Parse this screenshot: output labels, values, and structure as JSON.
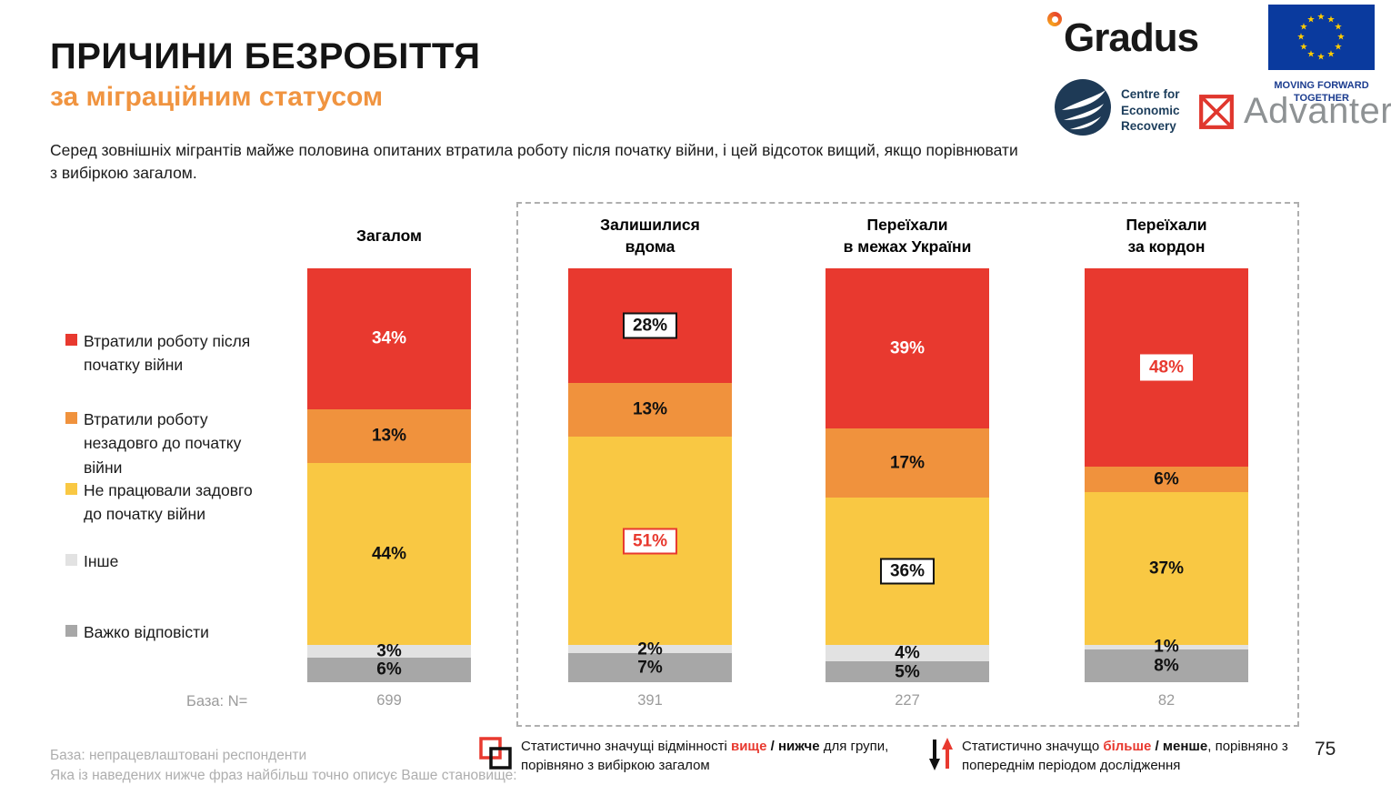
{
  "header": {
    "title": "ПРИЧИНИ БЕЗРОБІТТЯ",
    "subtitle": "за міграційним статусом",
    "intro": "Серед зовнішніх мігрантів майже половина опитаних втратила роботу після початку війни, і цей відсоток вищий, якщо порівнювати\nз вибіркою загалом."
  },
  "logos": {
    "gradus_text": "Gradus",
    "eu_caption": "MOVING FORWARD\nTOGETHER",
    "cer_text": "Centre for\nEconomic\nRecovery",
    "advanter_text": "Advanter"
  },
  "chart_data": {
    "type": "bar",
    "stacked": true,
    "value_unit": "%",
    "categories": [
      "Загалом",
      "Залишилися вдома",
      "Переїхали в межах України",
      "Переїхали за кордон"
    ],
    "category_display": [
      "Загалом",
      "Залишилися\nвдома",
      "Переїхали\nв межах України",
      "Переїхали\nза кордон"
    ],
    "series": [
      {
        "name": "Втратили роботу після початку війни",
        "color": "#E8392F",
        "values": [
          34,
          28,
          39,
          48
        ]
      },
      {
        "name": "Втратили роботу незадовго до початку війни",
        "color": "#F0923D",
        "values": [
          13,
          13,
          17,
          6
        ]
      },
      {
        "name": "Не працювали задовго до початку війни",
        "color": "#F9C843",
        "values": [
          44,
          51,
          36,
          37
        ]
      },
      {
        "name": "Інше",
        "color": "#E2E2E2",
        "values": [
          3,
          2,
          4,
          1
        ]
      },
      {
        "name": "Важко відповісти",
        "color": "#A7A7A7",
        "values": [
          6,
          7,
          5,
          8
        ]
      }
    ],
    "label_styles": [
      [
        "plain-white",
        "plain-black",
        "plain-black",
        "plain-black",
        "plain-black"
      ],
      [
        "box-black",
        "plain-black",
        "box-red",
        "plain-black",
        "plain-black"
      ],
      [
        "plain-white",
        "plain-black",
        "box-black",
        "plain-black",
        "plain-black"
      ],
      [
        "box-whitebg-red",
        "plain-black",
        "plain-black",
        "plain-black",
        "plain-black"
      ]
    ],
    "base_label": "База: N=",
    "bases": [
      "699",
      "391",
      "227",
      "82"
    ]
  },
  "legend": {
    "items": [
      {
        "label": "Втратили роботу після\nпочатку війни",
        "color": "#E8392F"
      },
      {
        "label": "Втратили роботу\nнезадовго до початку\nвійни",
        "color": "#F0923D"
      },
      {
        "label": "Не працювали задовго\nдо початку війни",
        "color": "#F9C843"
      },
      {
        "label": "Інше",
        "color": "#E2E2E2"
      },
      {
        "label": "Важко відповісти",
        "color": "#A7A7A7"
      }
    ]
  },
  "significance": {
    "group_diff": {
      "pre": "Статистично значущі відмінності",
      "higher": "вище",
      "sep": "/",
      "lower": "нижче",
      "post": " для групи,",
      "line2": "порівняно з вибіркою загалом"
    },
    "wave_diff": {
      "pre": "Статистично значущо",
      "higher": "більше",
      "sep": "/",
      "lower": "менше",
      "post": ", порівняно з",
      "line2": "попереднім періодом дослідження"
    }
  },
  "footer": {
    "note1": "База: непрацевлаштовані респонденти",
    "note2": "Яка із наведених нижче фраз найбільш точно описує Ваше становище:",
    "page": "75"
  }
}
